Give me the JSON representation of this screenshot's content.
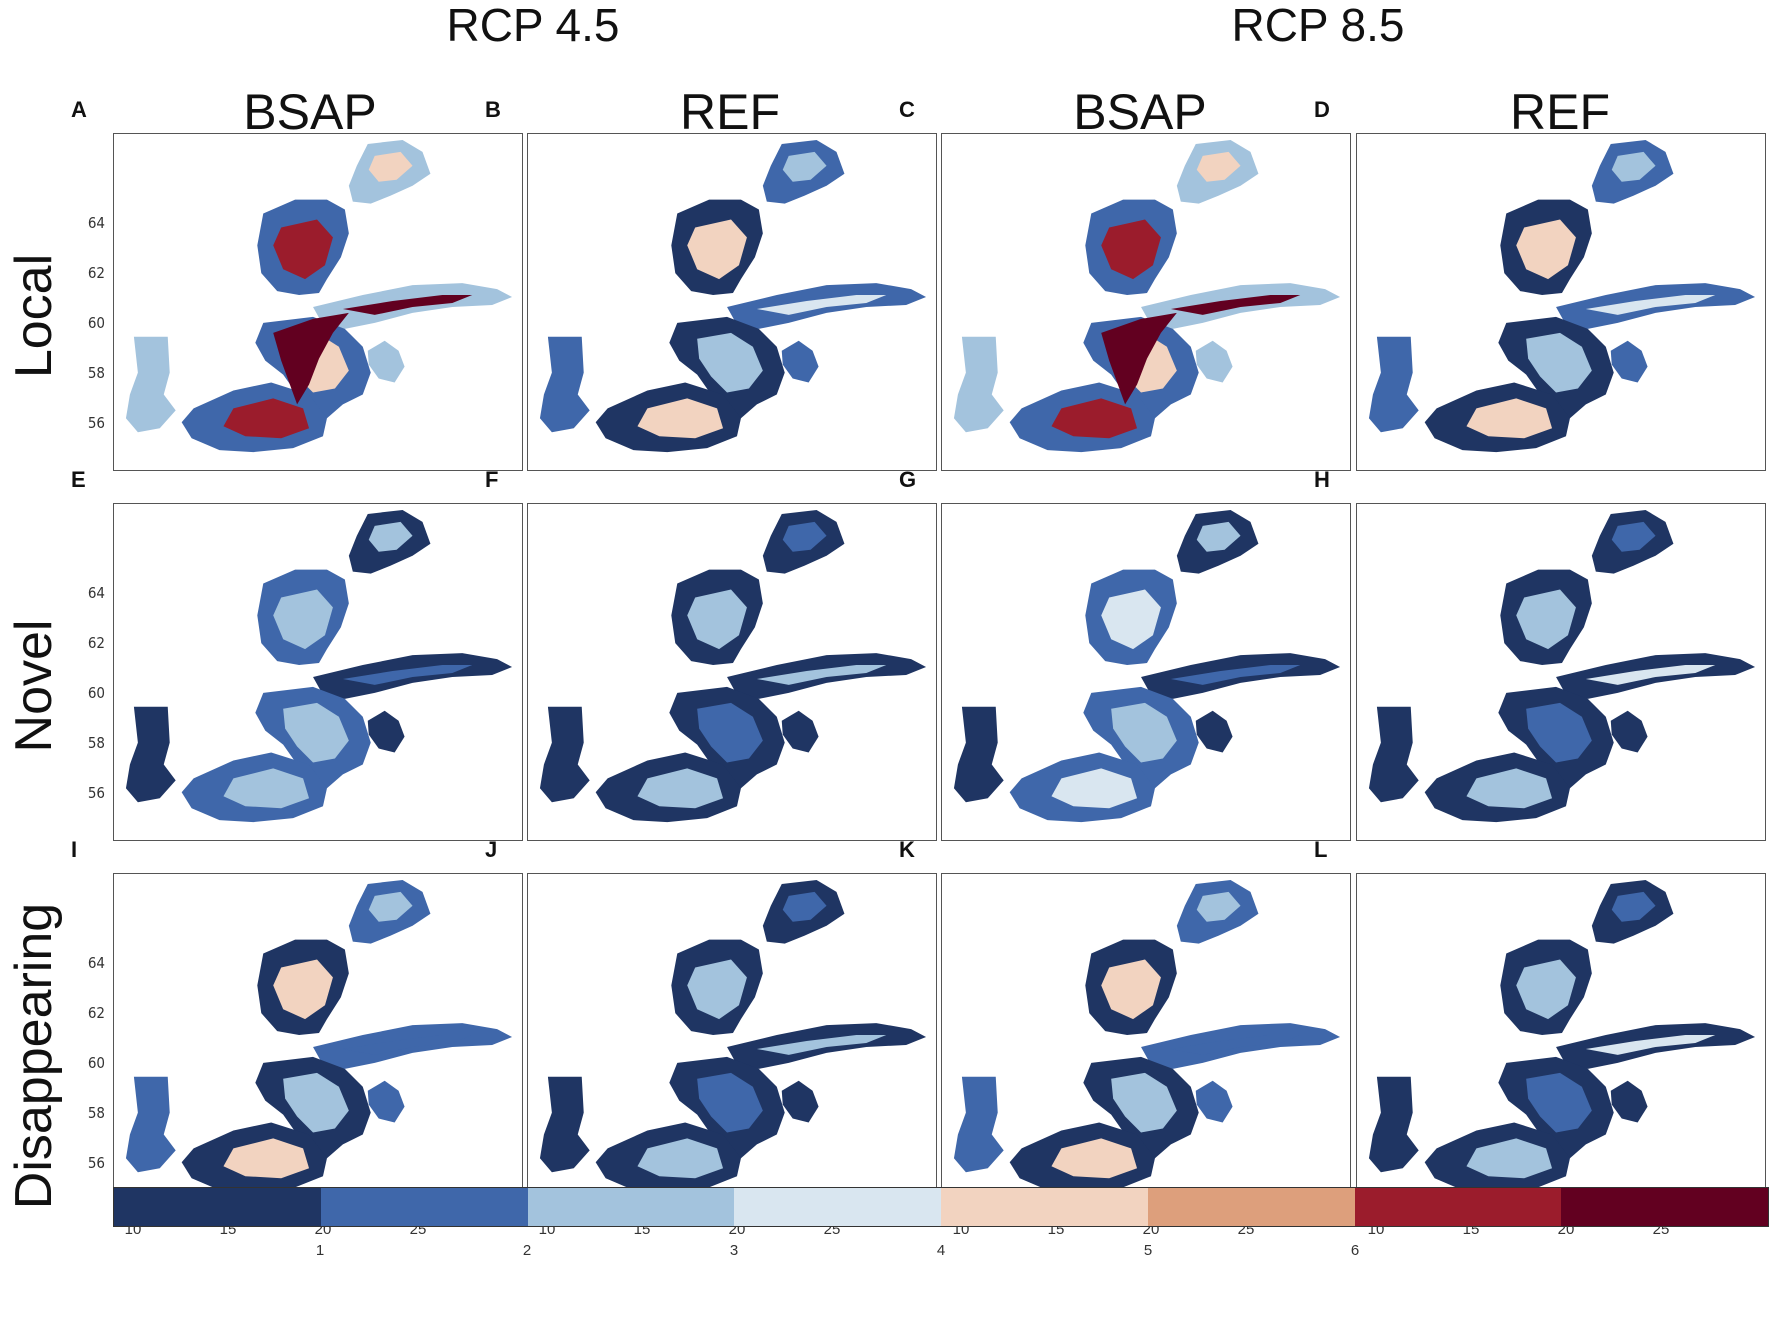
{
  "scenarios": [
    {
      "label": "RCP 4.5"
    },
    {
      "label": "RCP 8.5"
    }
  ],
  "columns": [
    {
      "label": "BSAP"
    },
    {
      "label": "REF"
    },
    {
      "label": "BSAP"
    },
    {
      "label": "REF"
    }
  ],
  "rows": [
    {
      "label": "Local"
    },
    {
      "label": "Novel"
    },
    {
      "label": "Disappearing"
    }
  ],
  "panels": [
    {
      "letter": "A",
      "row": 0,
      "col": 0,
      "palette": [
        "#3f67aa",
        "#a3c3dd",
        "#f2d3c0",
        "#9b1c2c",
        "#620020"
      ]
    },
    {
      "letter": "B",
      "row": 0,
      "col": 1,
      "palette": [
        "#1f3563",
        "#3f67aa",
        "#a3c3dd",
        "#f2d3c0",
        "#d9e6f0"
      ]
    },
    {
      "letter": "C",
      "row": 0,
      "col": 2,
      "palette": [
        "#3f67aa",
        "#a3c3dd",
        "#f2d3c0",
        "#9b1c2c",
        "#620020"
      ]
    },
    {
      "letter": "D",
      "row": 0,
      "col": 3,
      "palette": [
        "#1f3563",
        "#3f67aa",
        "#a3c3dd",
        "#f2d3c0",
        "#d9e6f0"
      ]
    },
    {
      "letter": "E",
      "row": 1,
      "col": 0,
      "palette": [
        "#1f3563",
        "#3f67aa",
        "#a3c3dd",
        "#a3c3dd",
        "#3f67aa"
      ]
    },
    {
      "letter": "F",
      "row": 1,
      "col": 1,
      "palette": [
        "#1f3563",
        "#1f3563",
        "#3f67aa",
        "#a3c3dd",
        "#a3c3dd"
      ]
    },
    {
      "letter": "G",
      "row": 1,
      "col": 2,
      "palette": [
        "#1f3563",
        "#3f67aa",
        "#a3c3dd",
        "#d9e6f0",
        "#3f67aa"
      ]
    },
    {
      "letter": "H",
      "row": 1,
      "col": 3,
      "palette": [
        "#1f3563",
        "#1f3563",
        "#3f67aa",
        "#a3c3dd",
        "#d9e6f0"
      ]
    },
    {
      "letter": "I",
      "row": 2,
      "col": 0,
      "palette": [
        "#1f3563",
        "#3f67aa",
        "#a3c3dd",
        "#f2d3c0",
        "#3f67aa"
      ]
    },
    {
      "letter": "J",
      "row": 2,
      "col": 1,
      "palette": [
        "#1f3563",
        "#1f3563",
        "#3f67aa",
        "#a3c3dd",
        "#a3c3dd"
      ]
    },
    {
      "letter": "K",
      "row": 2,
      "col": 2,
      "palette": [
        "#1f3563",
        "#3f67aa",
        "#a3c3dd",
        "#f2d3c0",
        "#3f67aa"
      ]
    },
    {
      "letter": "L",
      "row": 2,
      "col": 3,
      "palette": [
        "#1f3563",
        "#1f3563",
        "#3f67aa",
        "#a3c3dd",
        "#d9e6f0"
      ]
    }
  ],
  "y_ticks": [
    "56",
    "58",
    "60",
    "62",
    "64"
  ],
  "x_ticks": [
    "10",
    "15",
    "20",
    "25"
  ],
  "colorbar": {
    "colors": [
      "#1f3563",
      "#3f67aa",
      "#a3c3dd",
      "#d9e6f0",
      "#f2d3c0",
      "#dd9f7c",
      "#9b1c2c",
      "#620020"
    ],
    "labels": [
      "1",
      "2",
      "3",
      "4",
      "5",
      "6"
    ]
  }
}
